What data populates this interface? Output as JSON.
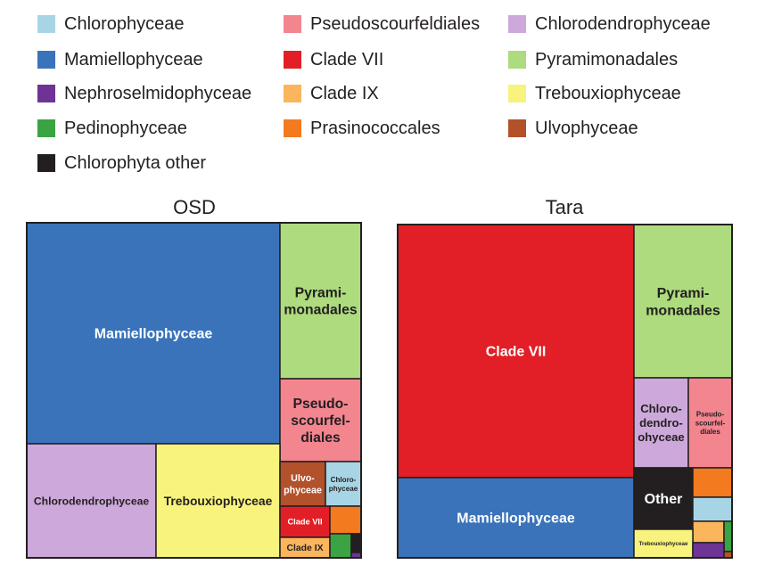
{
  "legend": [
    {
      "name": "Chlorophyceae",
      "color": "#a8d5e6"
    },
    {
      "name": "Mamiellophyceae",
      "color": "#3a73b9"
    },
    {
      "name": "Nephroselmidophyceae",
      "color": "#6d3495"
    },
    {
      "name": "Pedinophyceae",
      "color": "#3aa344"
    },
    {
      "name": "Chlorophyta other",
      "color": "#231f20"
    },
    {
      "name": "Pseudoscourfeldiales",
      "color": "#f3858f"
    },
    {
      "name": "Clade VII",
      "color": "#e21f26"
    },
    {
      "name": "Clade IX",
      "color": "#fbb55c"
    },
    {
      "name": "Prasinococcales",
      "color": "#f47a20"
    },
    {
      "name": "Chlorodendrophyceae",
      "color": "#cda8db"
    },
    {
      "name": "Pyramimonadales",
      "color": "#addb7d"
    },
    {
      "name": "Trebouxiophyceae",
      "color": "#f7f37c"
    },
    {
      "name": "Ulvophyceae",
      "color": "#b3512a"
    }
  ],
  "chart_data": [
    {
      "type": "treemap",
      "title": "OSD",
      "cells": [
        {
          "group": "Mamiellophyceae",
          "label": "Mamiellophyceae",
          "value": 39.3
        },
        {
          "group": "Pyramimonadales",
          "label": "Pyrami-\nmonadales",
          "value": 9.4
        },
        {
          "group": "Pseudoscourfeldiales",
          "label": "Pseudo-\nscourfel-\ndiales",
          "value": 5.4
        },
        {
          "group": "Chlorodendrophyceae",
          "label": "Chlorodendrophyceae",
          "value": 10.9
        },
        {
          "group": "Trebouxiophyceae",
          "label": "Trebouxiophyceae",
          "value": 10.3
        },
        {
          "group": "Ulvophyceae",
          "label": "Ulvo-\nphyceae",
          "value": 1.7
        },
        {
          "group": "Chlorophyceae",
          "label": "Chloro-\nphyceae",
          "value": 1.4
        },
        {
          "group": "Clade VII",
          "label": "Clade VII",
          "value": 1.6
        },
        {
          "group": "Prasinococcales",
          "label": "",
          "value": 1.1
        },
        {
          "group": "Clade IX",
          "label": "Clade IX",
          "value": 1.1
        },
        {
          "group": "Pedinophyceae",
          "label": "",
          "value": 0.8
        },
        {
          "group": "Chlorophyta other",
          "label": "",
          "value": 0.3
        },
        {
          "group": "Nephroselmidophyceae",
          "label": "",
          "value": 0.1
        }
      ]
    },
    {
      "type": "treemap",
      "title": "Tara",
      "cells": [
        {
          "group": "Clade VII",
          "label": "Clade VII",
          "value": 40.8
        },
        {
          "group": "Pyramimonadales",
          "label": "Pyrami-\nmonadales",
          "value": 15.4
        },
        {
          "group": "Mamiellophyceae",
          "label": "Mamiellophyceae",
          "value": 15.7
        },
        {
          "group": "Chlorodendrophyceae",
          "label": "Chloro-\ndendro-\nohyceae",
          "value": 5.1
        },
        {
          "group": "Pseudoscourfeldiales",
          "label": "Pseudo-\nscourfel-\ndiales",
          "value": 4.7
        },
        {
          "group": "Chlorophyta other",
          "label": "Other",
          "value": 4.5
        },
        {
          "group": "Prasinococcales",
          "label": "",
          "value": 1.5
        },
        {
          "group": "Chlorophyceae",
          "label": "",
          "value": 1.4
        },
        {
          "group": "Clade IX",
          "label": "",
          "value": 1.0
        },
        {
          "group": "Pedinophyceae",
          "label": "",
          "value": 0.4
        },
        {
          "group": "Trebouxiophyceae",
          "label": "Trebouxiophyceae",
          "value": 1.5
        },
        {
          "group": "Nephroselmidophyceae",
          "label": "",
          "value": 0.8
        },
        {
          "group": "Ulvophyceae",
          "label": "",
          "value": 0.2
        }
      ]
    }
  ]
}
